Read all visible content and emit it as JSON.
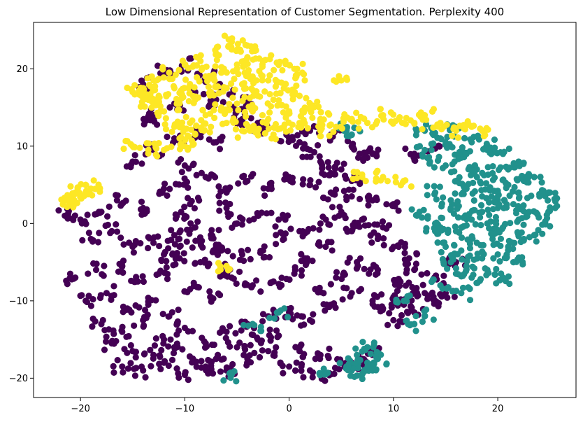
{
  "chart_data": {
    "type": "scatter",
    "title": "Low Dimensional Representation of Customer Segmentation. Perplexity 400",
    "xlabel": "",
    "ylabel": "",
    "xlim": [
      -24.5,
      27.5
    ],
    "ylim": [
      -22.5,
      26
    ],
    "xticks": [
      -20,
      -10,
      0,
      10,
      20
    ],
    "yticks": [
      -20,
      -10,
      0,
      10,
      20
    ],
    "grid": false,
    "legend": "none",
    "colors": {
      "cluster_0": "#440154",
      "cluster_1": "#21918c",
      "cluster_2": "#fde725"
    },
    "series": [
      {
        "color": "#440154",
        "x": [
          -21.5,
          -20.0,
          -18.0,
          -16.5,
          -14.0,
          -12.0,
          -10.0,
          -8.0,
          -6.0,
          -4.0,
          -2.0,
          0.0,
          2.0,
          4.0,
          6.0,
          8.0,
          10.0,
          -19.0,
          -17.0,
          -15.0,
          -13.0,
          -11.0,
          -9.0,
          -7.0,
          -5.0,
          -3.0,
          -1.0,
          1.0,
          3.0,
          5.0,
          7.0,
          9.0,
          -20.5,
          -18.5,
          -16.0,
          -14.5,
          -12.5,
          -10.5,
          -8.5,
          -6.5,
          -4.5,
          -2.5,
          -0.5,
          1.5,
          3.5,
          -19.5,
          -17.5,
          -15.5,
          -13.5,
          -11.5,
          -9.5,
          -7.5,
          -5.5,
          -3.5,
          -1.5,
          0.5,
          2.5,
          4.5,
          6.5,
          8.5,
          10.5,
          12.0,
          -18.0,
          -16.0,
          -14.0,
          -12.0,
          -10.0,
          -8.0,
          -6.0,
          -4.0,
          -2.0,
          0.0,
          2.0,
          4.0,
          6.0,
          8.0,
          10.0,
          12.0,
          14.0,
          -17.0,
          -15.0,
          -13.0,
          -11.0,
          -9.0,
          -7.0,
          -5.0,
          -3.0,
          -1.0,
          1.0,
          3.0,
          5.0,
          7.0,
          9.0,
          11.0,
          13.0,
          -16.0,
          -14.0,
          -12.0,
          -10.0,
          -8.0,
          -6.0,
          -4.0,
          -2.0,
          0.0,
          2.0,
          4.0,
          6.0,
          8.0,
          10.0,
          12.0,
          14.0,
          -15.0,
          -13.0,
          -11.0,
          -9.0,
          -7.0,
          -5.0,
          -3.0,
          0.0,
          2.0,
          4.0,
          6.0,
          8.0,
          -13.0,
          -11.0,
          -9.0,
          -7.0,
          -5.0,
          -3.0,
          1.0,
          3.0,
          5.0,
          -14.0,
          -12.0,
          -10.0,
          -8.0,
          -6.0,
          -4.0,
          2.0,
          4.0,
          6.0,
          -13.5,
          -10.0,
          -6.0,
          -12.0,
          -10.5,
          -8.5,
          -6.5,
          -10.0,
          -9.5,
          -7.5,
          6.0,
          8.5,
          10.5,
          11.5,
          7.5,
          12.0,
          14.0,
          16.0,
          15.0
        ],
        "y": [
          1.0,
          0.5,
          1.5,
          3.0,
          2.0,
          4.5,
          5.0,
          6.0,
          4.0,
          5.5,
          4.5,
          6.0,
          5.0,
          4.0,
          3.5,
          3.0,
          2.5,
          -2.0,
          -1.0,
          -3.0,
          -2.5,
          -1.5,
          -0.5,
          -3.0,
          0.0,
          1.0,
          0.5,
          -1.0,
          0.0,
          1.5,
          0.5,
          -0.5,
          -7.0,
          -6.0,
          -5.5,
          -7.5,
          -6.5,
          -4.5,
          -5.0,
          -6.0,
          -4.0,
          -3.5,
          -2.0,
          -4.5,
          -3.0,
          -10.0,
          -9.0,
          -11.0,
          -10.5,
          -12.0,
          -8.5,
          -9.5,
          -7.0,
          -8.0,
          -7.5,
          -6.5,
          -8.5,
          -7.0,
          -5.0,
          -6.0,
          -7.5,
          -6.0,
          -13.0,
          -14.0,
          -12.5,
          -15.0,
          -13.5,
          -15.5,
          -14.0,
          -13.0,
          -12.0,
          -11.5,
          -12.5,
          -10.5,
          -9.0,
          -10.0,
          -9.5,
          -8.5,
          -7.0,
          -15.5,
          -16.5,
          -17.0,
          -16.0,
          -18.0,
          -17.5,
          -16.0,
          -15.0,
          -14.5,
          -16.5,
          -17.0,
          -18.0,
          -17.5,
          -11.0,
          -10.5,
          -9.0,
          -18.5,
          -19.0,
          -18.0,
          -19.5,
          -18.5,
          -19.0,
          -17.5,
          -16.5,
          -18.5,
          -19.0,
          -19.5,
          -18.0,
          -17.0,
          -12.5,
          -11.5,
          -10.0,
          8.0,
          9.5,
          11.0,
          12.0,
          10.5,
          13.0,
          12.5,
          11.0,
          12.0,
          11.5,
          10.0,
          9.0,
          14.0,
          15.5,
          17.0,
          16.0,
          14.5,
          13.0,
          10.5,
          8.0,
          7.0,
          18.0,
          19.5,
          20.5,
          19.0,
          17.5,
          15.5,
          9.5,
          6.5,
          5.5,
          13.5,
          7.5,
          2.0,
          -4.0,
          -3.0,
          -2.5,
          -3.5,
          1.0,
          2.5,
          -1.5,
          -1.0,
          -2.0,
          -3.0,
          -4.5,
          8.5,
          9.0,
          10.0,
          -5.0,
          -9.0
        ],
        "size": 4.6,
        "jitter": 0.9
      },
      {
        "color": "#21918c",
        "x": [
          13.0,
          14.5,
          16.0,
          17.5,
          19.0,
          20.5,
          22.0,
          23.5,
          25.0,
          13.5,
          15.0,
          16.5,
          18.0,
          19.5,
          21.0,
          22.5,
          24.0,
          25.5,
          14.0,
          15.5,
          17.0,
          18.5,
          20.0,
          21.5,
          23.0,
          24.5,
          14.5,
          16.0,
          17.5,
          19.0,
          20.5,
          22.0,
          23.5,
          15.0,
          16.5,
          18.0,
          19.5,
          21.0,
          22.5,
          15.5,
          17.0,
          18.5,
          20.0,
          21.5,
          16.0,
          17.5,
          19.0,
          20.5,
          12.5,
          14.0,
          15.5,
          17.0,
          18.5,
          20.0,
          13.0,
          15.0,
          17.0,
          19.0,
          21.0,
          14.0,
          16.0,
          18.0,
          20.0,
          22.0,
          14.5,
          16.5,
          6.5,
          7.5,
          8.5,
          7.0,
          8.0,
          7.5,
          6.0,
          5.5,
          3.5,
          -1.0,
          -3.5,
          -5.5,
          12.0,
          13.0,
          11.0,
          6.0,
          5.5
        ],
        "y": [
          12.0,
          11.0,
          12.5,
          10.5,
          9.5,
          9.0,
          8.0,
          6.0,
          4.0,
          8.0,
          7.5,
          8.5,
          7.0,
          6.5,
          7.0,
          5.5,
          3.5,
          2.0,
          4.0,
          3.0,
          4.5,
          3.5,
          4.0,
          2.5,
          1.5,
          0.0,
          -0.5,
          -1.0,
          0.5,
          0.0,
          -0.5,
          0.5,
          -1.5,
          -3.0,
          -3.5,
          -2.5,
          -2.0,
          -3.0,
          -2.0,
          -5.0,
          -5.5,
          -4.5,
          -4.0,
          -5.0,
          -6.5,
          -7.0,
          -6.0,
          -7.0,
          1.5,
          0.0,
          2.0,
          1.0,
          1.5,
          2.0,
          9.5,
          10.5,
          9.0,
          10.0,
          5.0,
          -1.0,
          5.5,
          6.0,
          3.0,
          4.0,
          -8.0,
          -9.0,
          -17.0,
          -18.0,
          -17.5,
          -19.5,
          -19.0,
          -16.0,
          -19.0,
          -18.5,
          -19.5,
          -11.5,
          -13.0,
          -19.5,
          -13.0,
          -12.0,
          -10.0,
          11.5,
          12.0
        ],
        "size": 4.6,
        "jitter": 0.9
      },
      {
        "color": "#fde725",
        "x": [
          -13.0,
          -11.5,
          -10.0,
          -8.5,
          -7.0,
          -5.5,
          -4.0,
          -2.5,
          -1.0,
          0.5,
          1.5,
          -12.5,
          -11.0,
          -9.5,
          -8.0,
          -6.5,
          -5.0,
          -3.5,
          -2.0,
          -0.5,
          1.0,
          2.0,
          -12.0,
          -10.5,
          -9.0,
          -7.5,
          -6.0,
          -4.5,
          -3.0,
          -1.5,
          0.0,
          3.0,
          -11.0,
          -9.5,
          -8.0,
          -6.5,
          -5.0,
          -3.5,
          -2.0,
          -0.5,
          1.0,
          -10.5,
          -9.0,
          -7.5,
          -6.0,
          -4.5,
          -3.0,
          -1.5,
          -12.0,
          -10.0,
          -5.5,
          -4.0,
          -14.0,
          -13.0,
          -21.5,
          -20.5,
          -19.5,
          -19.0,
          -21.0,
          -20.0,
          -15.0,
          -13.5,
          4.5,
          6.0,
          7.5,
          9.0,
          10.5,
          12.0,
          13.0,
          14.5,
          16.0,
          17.5,
          18.5,
          5.0,
          7.0,
          9.0,
          11.0,
          3.0,
          2.0,
          -6.0,
          -13.5,
          -15.0
        ],
        "y": [
          18.5,
          19.5,
          20.5,
          21.0,
          22.0,
          22.5,
          21.5,
          21.0,
          20.5,
          20.0,
          18.5,
          16.5,
          17.5,
          18.0,
          19.0,
          19.5,
          20.0,
          19.0,
          18.5,
          17.5,
          16.5,
          15.0,
          14.5,
          15.5,
          16.0,
          17.0,
          17.5,
          18.0,
          16.5,
          16.0,
          14.5,
          13.5,
          12.5,
          13.0,
          14.0,
          15.0,
          15.5,
          14.5,
          13.5,
          12.5,
          13.0,
          11.0,
          11.5,
          12.5,
          13.0,
          12.0,
          12.0,
          11.5,
          9.5,
          10.0,
          23.5,
          23.0,
          17.5,
          15.5,
          3.0,
          4.0,
          5.0,
          4.5,
          2.5,
          3.5,
          10.0,
          9.5,
          12.5,
          13.5,
          13.0,
          14.0,
          13.5,
          13.0,
          14.0,
          13.0,
          12.0,
          12.5,
          12.0,
          18.5,
          6.0,
          6.0,
          5.5,
          12.0,
          15.0,
          -5.5,
          16.0,
          17.0
        ],
        "size": 4.6,
        "jitter": 0.9
      }
    ]
  }
}
